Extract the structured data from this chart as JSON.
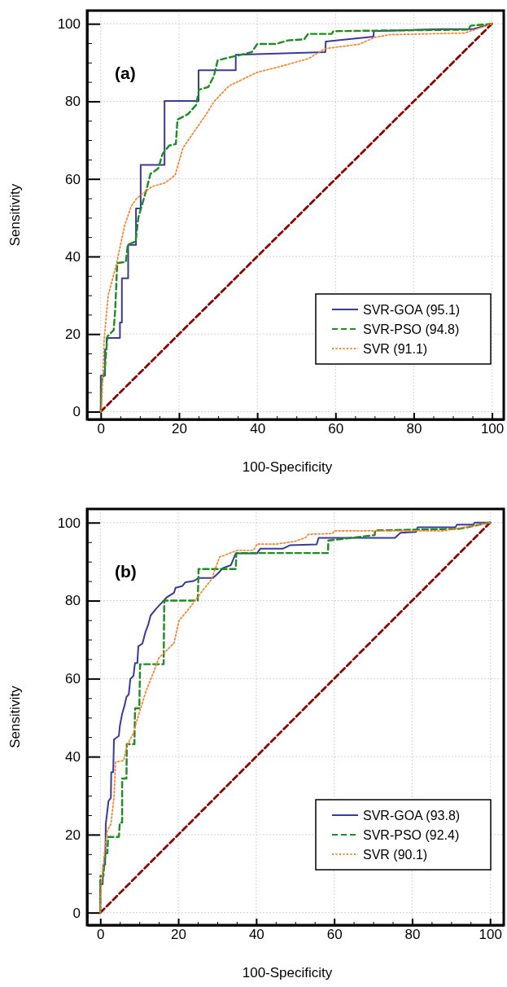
{
  "chart_data": [
    {
      "type": "line",
      "xlabel": "100-Specificity",
      "ylabel": "Sensitivity",
      "annotations": [
        "(a)"
      ],
      "xlim": [
        -3.5,
        103
      ],
      "ylim": [
        -2,
        103.4
      ],
      "xticks": [
        0,
        {
          "value": 5,
          "label": null
        },
        {
          "value": 10,
          "label": null
        },
        {
          "value": 15,
          "label": null
        },
        20,
        {
          "value": 25,
          "label": null
        },
        {
          "value": 30,
          "label": null
        },
        {
          "value": 35,
          "label": null
        },
        40,
        {
          "value": 45,
          "label": null
        },
        {
          "value": 50,
          "label": null
        },
        {
          "value": 55,
          "label": null
        },
        60,
        {
          "value": 65,
          "label": null
        },
        {
          "value": 70,
          "label": null
        },
        {
          "value": 75,
          "label": null
        },
        80,
        {
          "value": 85,
          "label": null
        },
        {
          "value": 90,
          "label": null
        },
        {
          "value": 95,
          "label": null
        },
        100
      ],
      "yticks": [
        0,
        {
          "value": 5,
          "label": null
        },
        {
          "value": 10,
          "label": null
        },
        {
          "value": 15,
          "label": null
        },
        20,
        {
          "value": 25,
          "label": null
        },
        {
          "value": 30,
          "label": null
        },
        {
          "value": 35,
          "label": null
        },
        40,
        {
          "value": 45,
          "label": null
        },
        {
          "value": 50,
          "label": null
        },
        {
          "value": 55,
          "label": null
        },
        60,
        {
          "value": 65,
          "label": null
        },
        {
          "value": 70,
          "label": null
        },
        {
          "value": 75,
          "label": null
        },
        80,
        {
          "value": 85,
          "label": null
        },
        {
          "value": 90,
          "label": null
        },
        {
          "value": 95,
          "label": null
        },
        100
      ],
      "grid": true,
      "legend": "bottom right",
      "series": [
        {
          "name": "SVR-GOA (95.1)",
          "color": "#3a3a9e",
          "line_style": "solid",
          "x": [
            0,
            0,
            1.1,
            1.1,
            1.5,
            1.5,
            4.9,
            4.9,
            5.4,
            5.4,
            7,
            7,
            9,
            9,
            10.2,
            10.2,
            16.3,
            16.3,
            25,
            25,
            34.5,
            34.5,
            57.4,
            57.5,
            69.7,
            69.8,
            87,
            95,
            100
          ],
          "values": [
            0,
            9.3,
            9.3,
            16,
            16,
            19,
            19,
            23,
            23,
            34.4,
            34.4,
            43,
            43,
            52.4,
            52.4,
            63.6,
            63.6,
            80.1,
            80.1,
            88,
            88,
            92,
            92.7,
            95.4,
            96.7,
            98.1,
            98.6,
            98.6,
            100
          ]
        },
        {
          "name": "SVR-PSO (94.8)",
          "color": "#1e8c1e",
          "line_style": "dashed",
          "x": [
            0,
            0.2,
            0.9,
            1.7,
            3.3,
            3.7,
            4.2,
            6.4,
            6.9,
            8.9,
            9.6,
            11.6,
            12.7,
            14.7,
            15.8,
            17.5,
            19.2,
            19.6,
            22.3,
            24.4,
            25.1,
            27.5,
            28.9,
            29.9,
            34.5,
            38.6,
            40,
            44.8,
            47.8,
            52,
            53,
            59,
            59.5,
            94,
            94.5,
            100
          ],
          "values": [
            0,
            7.9,
            9.6,
            19.4,
            21,
            26.4,
            38.3,
            38.6,
            43,
            43.9,
            50,
            57,
            61.3,
            62.7,
            66.5,
            68.6,
            69,
            75.3,
            76.7,
            79.1,
            83,
            83.7,
            86.5,
            90.6,
            91.7,
            92.7,
            94.8,
            94.8,
            95.7,
            96,
            97.4,
            97.4,
            98.1,
            98.5,
            99.5,
            100
          ]
        },
        {
          "name": "SVR (91.1)",
          "color": "#ff7f27",
          "line_style": "dotted",
          "x": [
            0,
            0.2,
            0.9,
            1.9,
            4,
            6.1,
            7.8,
            9.2,
            13,
            16.5,
            19,
            21,
            26.5,
            29,
            32.8,
            40,
            46,
            53,
            57.4,
            66,
            70,
            74,
            93,
            100
          ],
          "values": [
            0,
            1,
            19,
            30,
            38,
            48,
            53,
            55,
            58,
            59,
            61,
            68,
            76,
            80,
            84,
            87.5,
            89,
            91,
            93.6,
            94.7,
            96.5,
            97.2,
            97.6,
            100
          ]
        },
        {
          "color": "#8b0000",
          "line_style": "dashed",
          "x": [
            0,
            100
          ],
          "values": [
            0,
            100
          ]
        }
      ]
    },
    {
      "type": "line",
      "xlabel": "100-Specificity",
      "ylabel": "Sensitivity",
      "annotations": [
        "(b)"
      ],
      "xlim": [
        -3.4,
        103.5
      ],
      "ylim": [
        -3.2,
        103.5
      ],
      "xticks": [
        0,
        {
          "value": 5,
          "label": null
        },
        {
          "value": 10,
          "label": null
        },
        {
          "value": 15,
          "label": null
        },
        20,
        {
          "value": 25,
          "label": null
        },
        {
          "value": 30,
          "label": null
        },
        {
          "value": 35,
          "label": null
        },
        40,
        {
          "value": 45,
          "label": null
        },
        {
          "value": 50,
          "label": null
        },
        {
          "value": 55,
          "label": null
        },
        60,
        {
          "value": 65,
          "label": null
        },
        {
          "value": 70,
          "label": null
        },
        {
          "value": 75,
          "label": null
        },
        80,
        {
          "value": 85,
          "label": null
        },
        {
          "value": 90,
          "label": null
        },
        {
          "value": 95,
          "label": null
        },
        100
      ],
      "yticks": [
        0,
        {
          "value": 5,
          "label": null
        },
        {
          "value": 10,
          "label": null
        },
        {
          "value": 15,
          "label": null
        },
        20,
        {
          "value": 25,
          "label": null
        },
        {
          "value": 30,
          "label": null
        },
        {
          "value": 35,
          "label": null
        },
        40,
        {
          "value": 45,
          "label": null
        },
        {
          "value": 50,
          "label": null
        },
        {
          "value": 55,
          "label": null
        },
        60,
        {
          "value": 65,
          "label": null
        },
        {
          "value": 70,
          "label": null
        },
        {
          "value": 75,
          "label": null
        },
        80,
        {
          "value": 85,
          "label": null
        },
        {
          "value": 90,
          "label": null
        },
        {
          "value": 95,
          "label": null
        },
        100
      ],
      "grid": true,
      "legend": "bottom right",
      "series": [
        {
          "name": "SVR-GOA (93.8)",
          "color": "#3a3a9e",
          "line_style": "solid",
          "x": [
            0,
            0,
            0.6,
            0.75,
            1.25,
            1.4,
            2.1,
            2.7,
            2.8,
            3.3,
            3.5,
            4.75,
            5,
            5.6,
            6.25,
            6.7,
            7.3,
            7.7,
            8.5,
            8.9,
            9.5,
            9.75,
            10.8,
            11.6,
            12.25,
            12.9,
            14.3,
            15.8,
            17,
            18.9,
            19.3,
            21,
            21.8,
            23.9,
            25.2,
            28.9,
            30.2,
            31.4,
            33.5,
            34.75,
            40.2,
            41,
            46.8,
            48.6,
            55.5,
            56,
            75.6,
            77,
            81,
            81.4,
            91.1,
            91.5,
            95.7,
            96,
            100
          ],
          "values": [
            0,
            7.3,
            7.3,
            12.3,
            12.3,
            22.7,
            28.6,
            29.4,
            36,
            36,
            44.4,
            45.3,
            47.8,
            51,
            53.2,
            55.3,
            56,
            59.9,
            60.7,
            64,
            64,
            68.3,
            69,
            72,
            73.7,
            76.2,
            77.9,
            79.5,
            80.8,
            82,
            83.3,
            83.7,
            84.7,
            85,
            85.8,
            85.8,
            87,
            88.3,
            89.1,
            92.1,
            92.1,
            93.3,
            93.3,
            94.2,
            94.4,
            96.1,
            96.1,
            97.4,
            97.6,
            98.8,
            98.8,
            99.5,
            99.5,
            100,
            100
          ]
        },
        {
          "name": "SVR-PSO (92.4)",
          "color": "#1e8c1e",
          "line_style": "dashed",
          "x": [
            0,
            0,
            0.8,
            1.2,
            1.8,
            2,
            4.75,
            5,
            5.6,
            5.6,
            6.7,
            6.8,
            8.75,
            8.9,
            10,
            10.2,
            16.25,
            16.4,
            25,
            25.2,
            34.75,
            34.9,
            58.4,
            58.5,
            70.4,
            70.5,
            92,
            100
          ],
          "values": [
            0,
            9.4,
            9.4,
            15.2,
            15.2,
            19.4,
            19.4,
            23.1,
            23.1,
            34.4,
            34.4,
            43.2,
            43.2,
            52.4,
            52.4,
            63.7,
            63.7,
            80,
            80,
            88.1,
            88.1,
            92.2,
            92.2,
            95.4,
            96.8,
            98,
            98.4,
            100
          ]
        },
        {
          "name": "SVR (90.1)",
          "color": "#ff7f27",
          "line_style": "dotted",
          "x": [
            0,
            0.2,
            0.6,
            1.2,
            1.8,
            2.7,
            3.5,
            3.9,
            6,
            6.7,
            8.5,
            10.2,
            11.8,
            13.5,
            15,
            16.8,
            18.9,
            20.2,
            22.7,
            24.3,
            26.8,
            28.5,
            30.6,
            31.8,
            35.2,
            39.3,
            40.2,
            45.2,
            50,
            52.7,
            53.4,
            59.6,
            60,
            88,
            92.2,
            100
          ],
          "values": [
            0,
            6.9,
            10.2,
            16.9,
            21,
            22.7,
            29.4,
            38.6,
            39,
            42.4,
            46.1,
            52,
            57,
            61.2,
            65.3,
            67,
            69.1,
            74.9,
            77.9,
            80,
            83.3,
            85.4,
            91.2,
            91.6,
            92.9,
            92.9,
            94.5,
            94.5,
            95.2,
            96.2,
            97,
            97.2,
            97.9,
            97.9,
            98.6,
            100
          ]
        },
        {
          "color": "#8b0000",
          "line_style": "dashed",
          "x": [
            0,
            100
          ],
          "values": [
            0,
            100
          ]
        }
      ]
    }
  ]
}
